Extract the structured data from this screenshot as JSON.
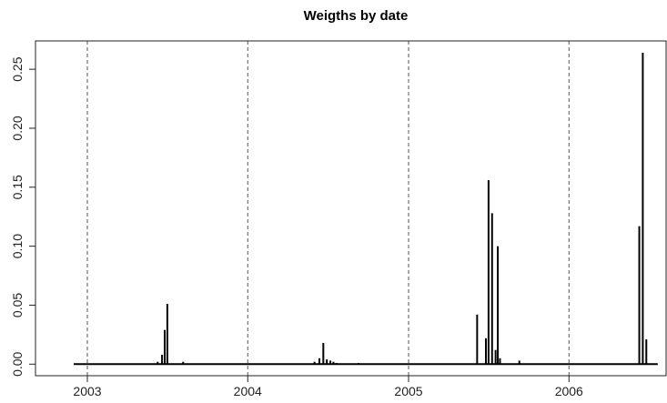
{
  "chart_data": {
    "type": "bar",
    "title": "Weigths by date",
    "xlabel": "",
    "ylabel": "",
    "x_ticks": [
      "2003",
      "2004",
      "2005",
      "2006"
    ],
    "y_ticks": [
      "0.00",
      "0.05",
      "0.10",
      "0.15",
      "0.20",
      "0.25"
    ],
    "xlim": [
      "2002-09-05",
      "2006-08-10"
    ],
    "ylim": [
      -0.0098,
      0.274
    ],
    "grid": "vertical-dashed-at-year-starts",
    "legend": "none",
    "points": [
      {
        "date": "2003-06-10",
        "value": 0.002
      },
      {
        "date": "2003-06-20",
        "value": 0.008
      },
      {
        "date": "2003-06-26",
        "value": 0.029
      },
      {
        "date": "2003-07-02",
        "value": 0.051
      },
      {
        "date": "2003-08-07",
        "value": 0.002
      },
      {
        "date": "2004-06-01",
        "value": 0.002
      },
      {
        "date": "2004-06-12",
        "value": 0.005
      },
      {
        "date": "2004-06-21",
        "value": 0.018
      },
      {
        "date": "2004-06-29",
        "value": 0.004
      },
      {
        "date": "2004-07-07",
        "value": 0.003
      },
      {
        "date": "2004-07-14",
        "value": 0.002
      },
      {
        "date": "2004-07-21",
        "value": 0.001
      },
      {
        "date": "2004-09-09",
        "value": 0.001
      },
      {
        "date": "2005-06-06",
        "value": 0.042
      },
      {
        "date": "2005-06-26",
        "value": 0.022
      },
      {
        "date": "2005-07-02",
        "value": 0.156
      },
      {
        "date": "2005-07-10",
        "value": 0.128
      },
      {
        "date": "2005-07-18",
        "value": 0.012
      },
      {
        "date": "2005-07-23",
        "value": 0.1
      },
      {
        "date": "2005-07-28",
        "value": 0.005
      },
      {
        "date": "2005-09-10",
        "value": 0.003
      },
      {
        "date": "2006-06-10",
        "value": 0.117
      },
      {
        "date": "2006-06-18",
        "value": 0.264
      },
      {
        "date": "2006-06-26",
        "value": 0.021
      }
    ]
  }
}
